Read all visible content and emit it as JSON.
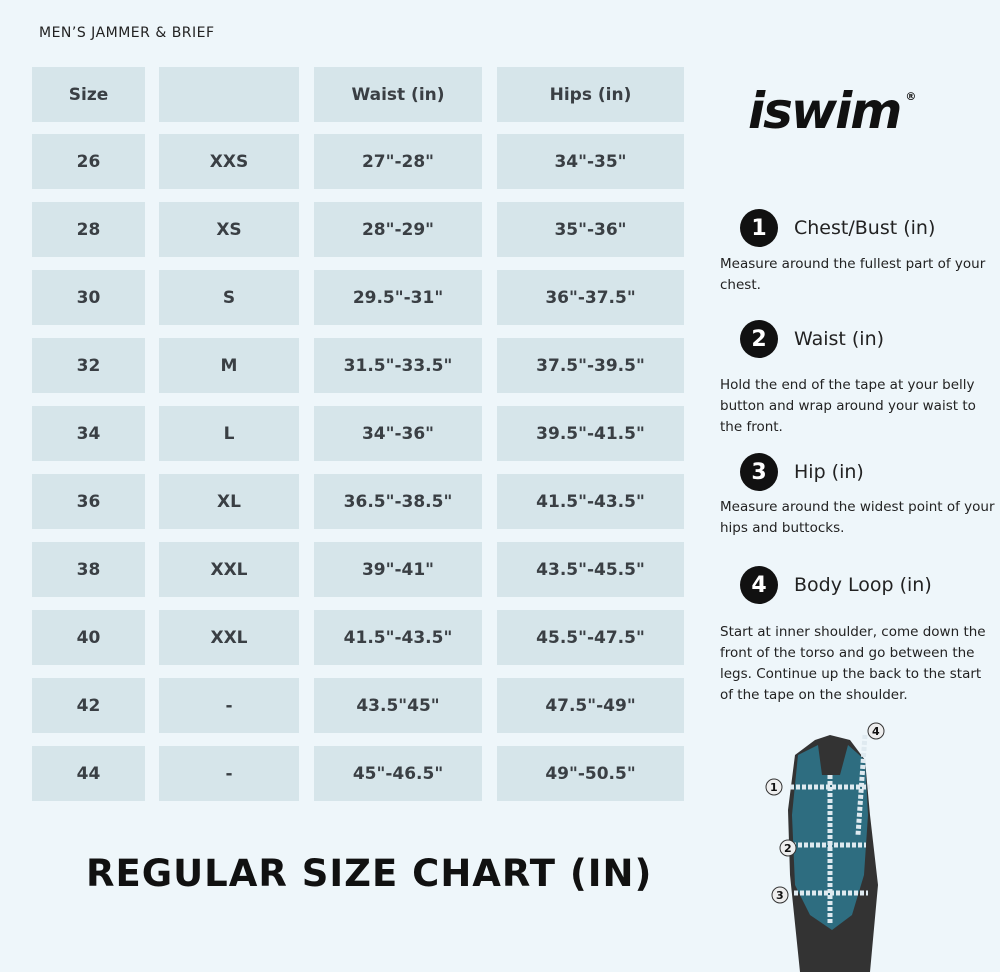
{
  "subtitle": "MEN’S JAMMER & BRIEF",
  "table": {
    "headers": [
      "Size",
      "",
      "Waist (in)",
      "Hips (in)"
    ],
    "rows": [
      [
        "26",
        "XXS",
        "27\"-28\"",
        "34\"-35\""
      ],
      [
        "28",
        "XS",
        "28\"-29\"",
        "35\"-36\""
      ],
      [
        "30",
        "S",
        "29.5\"-31\"",
        "36\"-37.5\""
      ],
      [
        "32",
        "M",
        "31.5\"-33.5\"",
        "37.5\"-39.5\""
      ],
      [
        "34",
        "L",
        "34\"-36\"",
        "39.5\"-41.5\""
      ],
      [
        "36",
        "XL",
        "36.5\"-38.5\"",
        "41.5\"-43.5\""
      ],
      [
        "38",
        "XXL",
        "39\"-41\"",
        "43.5\"-45.5\""
      ],
      [
        "40",
        "XXL",
        "41.5\"-43.5\"",
        "45.5\"-47.5\""
      ],
      [
        "42",
        "-",
        "43.5\"45\"",
        "47.5\"-49\""
      ],
      [
        "44",
        "-",
        "45\"-46.5\"",
        "49\"-50.5\""
      ]
    ]
  },
  "title": "REGULAR SIZE CHART (IN)",
  "logo": {
    "text": "iswim",
    "mark": "®"
  },
  "steps": [
    {
      "num": "1",
      "title": "Chest/Bust (in)",
      "desc": "Measure around the fullest part of your chest."
    },
    {
      "num": "2",
      "title": "Waist (in)",
      "desc": "Hold the end of the tape at your belly button and wrap around your waist to the front."
    },
    {
      "num": "3",
      "title": "Hip (in)",
      "desc": "Measure around the widest point of your hips and buttocks."
    },
    {
      "num": "4",
      "title": "Body Loop (in)",
      "desc": "Start at inner shoulder, come down the front of the torso and go between the legs. Continue up the back to the start of the tape on the shoulder."
    }
  ],
  "figure_labels": [
    "1",
    "2",
    "3",
    "4"
  ],
  "colors": {
    "cell": "#d6e5ea",
    "background": "#eef6fa",
    "swimsuit": "#2e6d80"
  }
}
